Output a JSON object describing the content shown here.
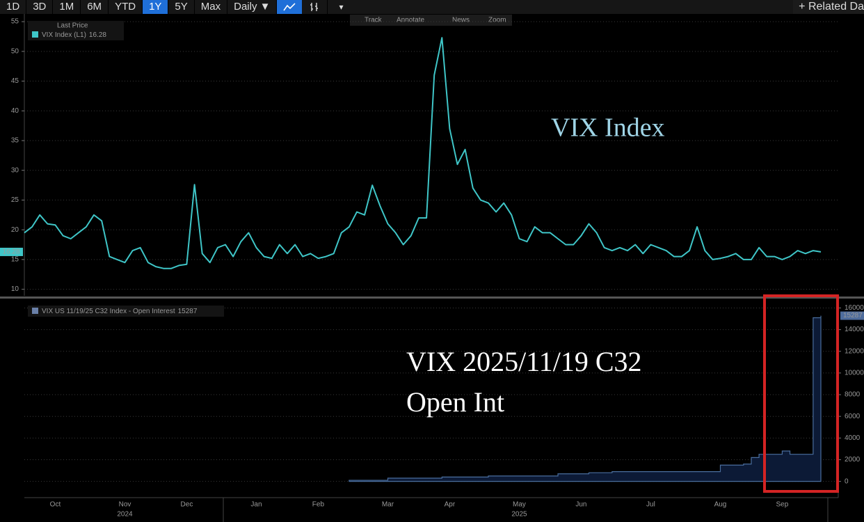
{
  "toolbar": {
    "ranges": [
      "1D",
      "3D",
      "1M",
      "6M",
      "YTD",
      "1Y",
      "5Y",
      "Max"
    ],
    "active": "1Y",
    "frequency": "Daily",
    "related": "Related Da"
  },
  "chart_tools": [
    "Track",
    "Annotate",
    "News",
    "Zoom"
  ],
  "chart_data": [
    {
      "type": "line",
      "legend_title": "Last Price",
      "name": "VIX Index  (L1)",
      "color": "#3fc6c8",
      "annotation": "VIX Index",
      "ylim": [
        8.9,
        56.3
      ],
      "yticks": [
        10,
        15,
        20,
        25,
        30,
        35,
        40,
        45,
        50,
        55
      ],
      "grid": true,
      "values": [
        19.5,
        20.5,
        22.5,
        21,
        20.8,
        19,
        18.5,
        19.5,
        20.5,
        22.5,
        21.5,
        15.5,
        15,
        14.5,
        16.5,
        17,
        14.5,
        13.8,
        13.5,
        13.5,
        14,
        14.2,
        27.6,
        16,
        14.5,
        17,
        17.5,
        15.5,
        18,
        19.5,
        17,
        15.5,
        15.2,
        17.5,
        16,
        17.5,
        15.5,
        16,
        15.2,
        15.5,
        16,
        19.5,
        20.5,
        23,
        22.5,
        27.5,
        24,
        21,
        19.5,
        17.5,
        19,
        22,
        22,
        46,
        52.3,
        37,
        31,
        33.5,
        27,
        25,
        24.5,
        23,
        24.5,
        22.5,
        18.5,
        18,
        20.5,
        19.5,
        19.5,
        18.5,
        17.5,
        17.5,
        19,
        21,
        19.5,
        17,
        16.5,
        17,
        16.5,
        17.5,
        16,
        17.5,
        17,
        16.5,
        15.5,
        15.5,
        16.5,
        20.5,
        16.5,
        15,
        15.2,
        15.5,
        16,
        15,
        15,
        17,
        15.5,
        15.5,
        15,
        15.5,
        16.5,
        16,
        16.5,
        16.28
      ]
    },
    {
      "type": "area",
      "name": "VIX US 11/19/25 C32 Index - Open Interest",
      "color": "#0c1a36",
      "edge_color": "#4a6e9e",
      "annotation": [
        "VIX 2025/11/19 C32",
        "Open Int"
      ],
      "ylim": [
        -1500,
        16800
      ],
      "yticks": [
        0,
        2000,
        4000,
        6000,
        8000,
        10000,
        12000,
        14000,
        16000
      ],
      "grid": true,
      "categories": [
        null,
        null,
        null,
        null,
        "Oct",
        null,
        null,
        null,
        null,
        null,
        null,
        null,
        null,
        "Nov",
        null,
        null,
        null,
        null,
        null,
        null,
        null,
        "Dec",
        null,
        null,
        null,
        null,
        null,
        null,
        null,
        null,
        "Jan",
        null,
        null,
        null,
        null,
        null,
        null,
        null,
        "Feb",
        null,
        null,
        null,
        null,
        null,
        null,
        null,
        null,
        "Mar",
        null,
        null,
        null,
        null,
        null,
        null,
        null,
        "Apr",
        null,
        null,
        null,
        null,
        null,
        null,
        null,
        null,
        "May",
        null,
        null,
        null,
        null,
        null,
        null,
        null,
        "Jun",
        null,
        null,
        null,
        null,
        null,
        null,
        null,
        null,
        "Jul",
        null,
        null,
        null,
        null,
        null,
        null,
        null,
        null,
        "Aug",
        null,
        null,
        null,
        null,
        null,
        null,
        null,
        "Sep",
        null,
        null,
        null,
        null,
        null
      ],
      "years": [
        "2024",
        "2025"
      ],
      "values": [
        null,
        null,
        null,
        null,
        null,
        null,
        null,
        null,
        null,
        null,
        null,
        null,
        null,
        null,
        null,
        null,
        null,
        null,
        null,
        null,
        null,
        null,
        null,
        null,
        null,
        null,
        null,
        null,
        null,
        null,
        null,
        null,
        null,
        null,
        null,
        null,
        null,
        null,
        null,
        null,
        null,
        null,
        100,
        100,
        100,
        100,
        100,
        300,
        300,
        300,
        300,
        300,
        300,
        300,
        400,
        400,
        400,
        400,
        400,
        400,
        500,
        500,
        500,
        500,
        500,
        500,
        500,
        500,
        500,
        700,
        700,
        700,
        700,
        800,
        800,
        800,
        900,
        900,
        900,
        900,
        900,
        900,
        900,
        900,
        900,
        900,
        900,
        900,
        900,
        900,
        1500,
        1500,
        1500,
        1600,
        2200,
        2500,
        2500,
        2500,
        2800,
        2500,
        2500,
        2500,
        15100,
        15287
      ]
    }
  ]
}
